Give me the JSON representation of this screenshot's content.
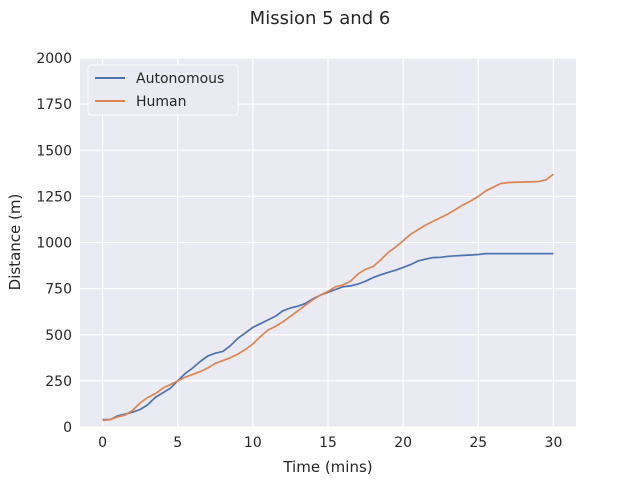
{
  "chart_data": {
    "type": "line",
    "title": "Mission 5 and 6",
    "xlabel": "Time (mins)",
    "ylabel": "Distance (m)",
    "xlim": [
      -1.5,
      31.5
    ],
    "ylim": [
      0,
      2000
    ],
    "xticks": [
      0,
      5,
      10,
      15,
      20,
      25,
      30
    ],
    "yticks": [
      0,
      250,
      500,
      750,
      1000,
      1250,
      1500,
      1750,
      2000
    ],
    "grid": true,
    "legend_position": "top-left",
    "series": [
      {
        "name": "Autonomous",
        "color": "#4c72b0",
        "x": [
          0,
          0.5,
          1,
          1.5,
          2,
          2.5,
          3,
          3.5,
          4,
          4.5,
          5,
          5.5,
          6,
          6.5,
          7,
          7.5,
          8,
          8.5,
          9,
          9.5,
          10,
          10.5,
          11,
          11.5,
          12,
          12.5,
          13,
          13.5,
          14,
          14.5,
          15,
          15.5,
          16,
          16.5,
          17,
          17.5,
          18,
          18.5,
          19,
          19.5,
          20,
          20.5,
          21,
          21.5,
          22,
          22.5,
          23,
          23.5,
          24,
          24.5,
          25,
          25.5,
          26,
          27,
          28,
          29,
          30
        ],
        "y": [
          40,
          40,
          60,
          70,
          80,
          95,
          120,
          160,
          185,
          210,
          250,
          290,
          320,
          355,
          385,
          400,
          410,
          440,
          480,
          510,
          540,
          560,
          580,
          600,
          630,
          645,
          655,
          670,
          695,
          715,
          730,
          745,
          760,
          765,
          775,
          790,
          810,
          825,
          838,
          850,
          865,
          880,
          900,
          910,
          918,
          920,
          925,
          928,
          930,
          932,
          935,
          940,
          940,
          940,
          940,
          940,
          940
        ]
      },
      {
        "name": "Human",
        "color": "#dd8452",
        "x": [
          0,
          0.5,
          1,
          1.5,
          2,
          2.5,
          3,
          3.5,
          4,
          4.5,
          5,
          5.5,
          6,
          6.5,
          7,
          7.5,
          8,
          8.5,
          9,
          9.5,
          10,
          10.5,
          11,
          11.5,
          12,
          12.5,
          13,
          13.5,
          14,
          14.5,
          15,
          15.5,
          16,
          16.5,
          17,
          17.5,
          18,
          18.5,
          19,
          19.5,
          20,
          20.5,
          21,
          21.5,
          22,
          22.5,
          23,
          23.5,
          24,
          24.5,
          25,
          25.5,
          26,
          26.5,
          27,
          28,
          29,
          29.5,
          30
        ],
        "y": [
          35,
          40,
          55,
          65,
          90,
          130,
          160,
          180,
          210,
          230,
          250,
          270,
          285,
          300,
          320,
          345,
          360,
          375,
          395,
          420,
          450,
          490,
          525,
          545,
          570,
          600,
          630,
          660,
          690,
          715,
          735,
          760,
          770,
          790,
          830,
          855,
          870,
          905,
          945,
          975,
          1010,
          1045,
          1070,
          1095,
          1115,
          1135,
          1155,
          1180,
          1205,
          1225,
          1250,
          1280,
          1300,
          1320,
          1325,
          1328,
          1330,
          1340,
          1370
        ]
      }
    ]
  }
}
